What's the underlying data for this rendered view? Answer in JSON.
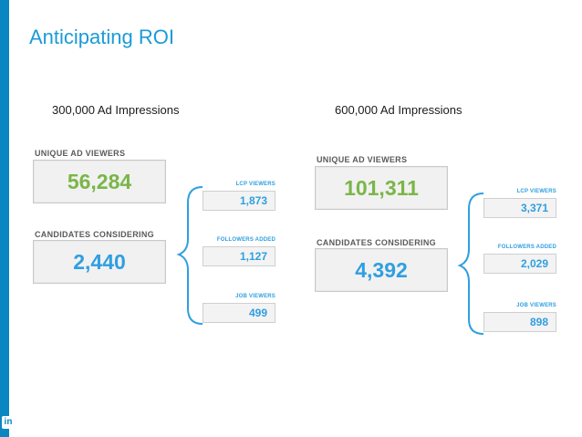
{
  "slide": {
    "title": "Anticipating ROI",
    "logo_text": "in"
  },
  "colors": {
    "accent": "#0a86c3",
    "title": "#1a9bd7",
    "green": "#7ab648",
    "blue": "#2f9fe0"
  },
  "scenarios": [
    {
      "heading": "300,000 Ad Impressions",
      "unique_label": "UNIQUE AD VIEWERS",
      "unique_value": "56,284",
      "candidates_label": "CANDIDATES CONSIDERING",
      "candidates_value": "2,440",
      "lcp_label": "LCP VIEWERS",
      "lcp_value": "1,873",
      "followers_label": "FOLLOWERS ADDED",
      "followers_value": "1,127",
      "job_label": "JOB VIEWERS",
      "job_value": "499"
    },
    {
      "heading": "600,000 Ad Impressions",
      "unique_label": "UNIQUE AD VIEWERS",
      "unique_value": "101,311",
      "candidates_label": "CANDIDATES CONSIDERING",
      "candidates_value": "4,392",
      "lcp_label": "LCP VIEWERS",
      "lcp_value": "3,371",
      "followers_label": "FOLLOWERS ADDED",
      "followers_value": "2,029",
      "job_label": "JOB VIEWERS",
      "job_value": "898"
    }
  ]
}
